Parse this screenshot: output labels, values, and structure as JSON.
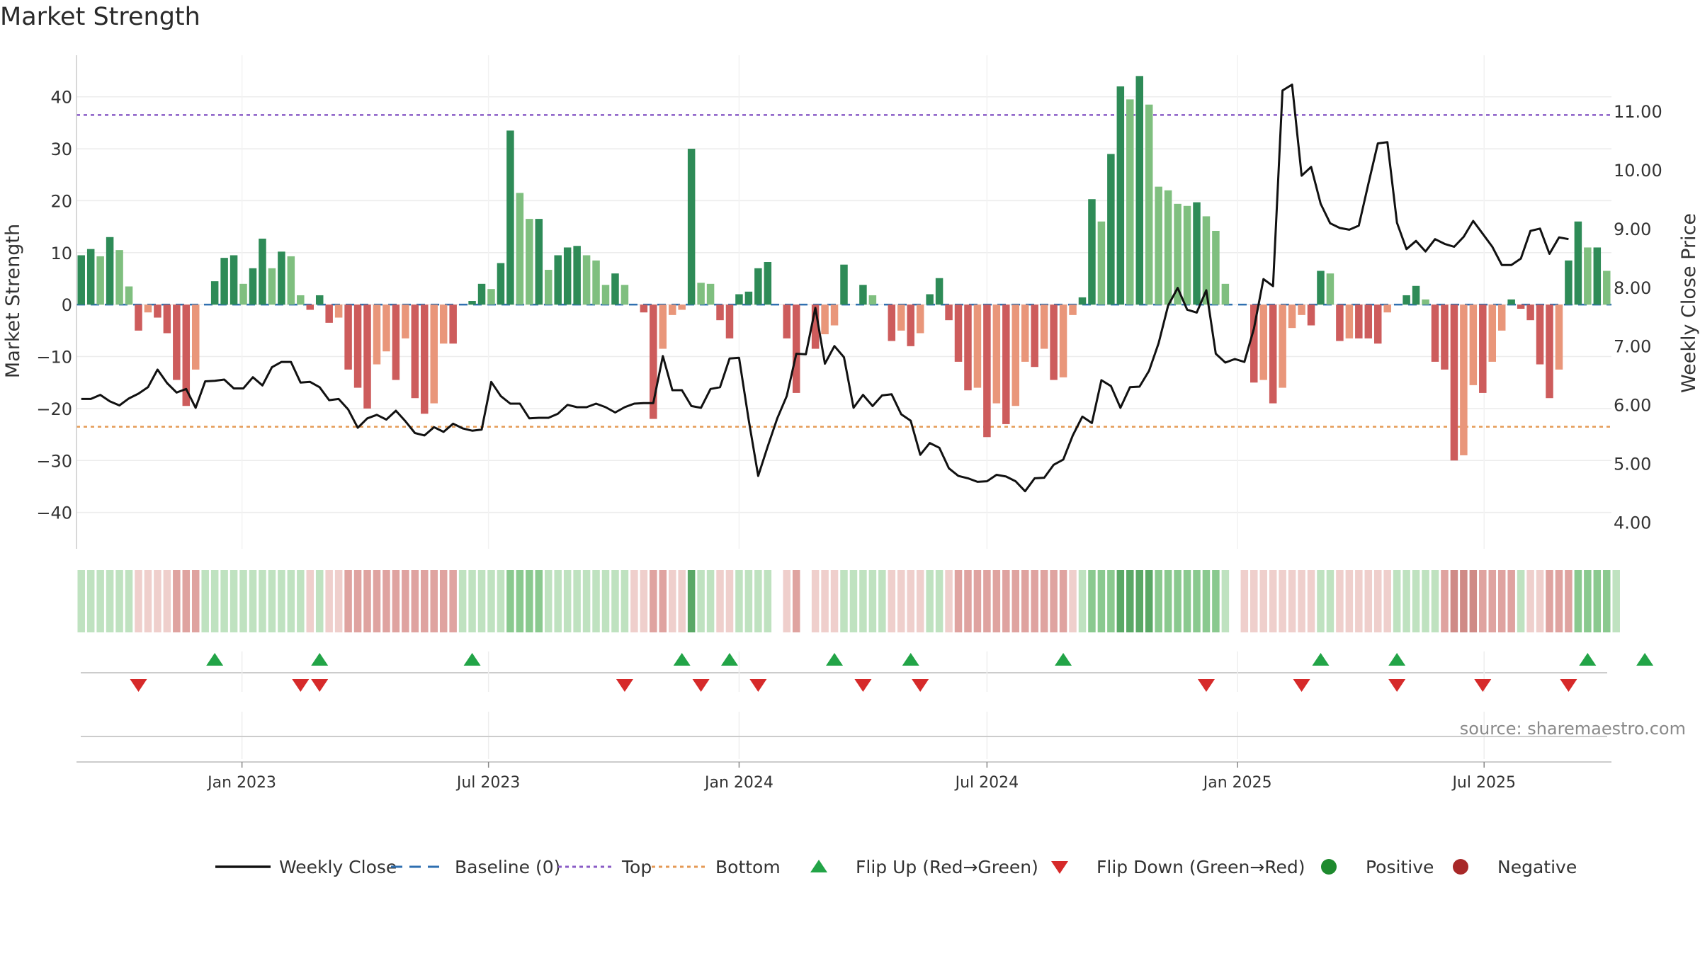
{
  "chart_data": {
    "type": "bar",
    "title": "Market Strength",
    "ylabel": "Market Strength",
    "y2label": "Weekly Close Price",
    "ylim": [
      -47,
      48
    ],
    "y2lim": [
      3.55,
      11.95
    ],
    "yticks": [
      40,
      30,
      20,
      10,
      0,
      -10,
      -20,
      -30,
      -40
    ],
    "ytick_labels": [
      "40",
      "30",
      "20",
      "10",
      "0",
      "−10",
      "−20",
      "−30",
      "−40"
    ],
    "y2ticks": [
      11,
      10,
      9,
      8,
      7,
      6,
      5,
      4
    ],
    "y2tick_labels": [
      "11.00",
      "10.00",
      "9.00",
      "8.00",
      "7.00",
      "6.00",
      "5.00",
      "4.00"
    ],
    "x_start": "2022-09-05",
    "x_step_days": 7,
    "x_tick_dates": [
      "2023-01-01",
      "2023-07-01",
      "2024-01-01",
      "2024-07-01",
      "2025-01-01",
      "2025-07-01"
    ],
    "x_tick_labels": [
      "Jan 2023",
      "Jul 2023",
      "Jan 2024",
      "Jul 2024",
      "Jan 2025",
      "Jul 2025"
    ],
    "top_line": 36.5,
    "bottom_line": -23.5,
    "grid": true,
    "series": [
      {
        "name": "Market Strength",
        "values": [
          9.5,
          10.7,
          9.3,
          13,
          10.5,
          3.5,
          -5,
          -1.5,
          -2.5,
          -5.5,
          -14.5,
          -19.5,
          -12.5,
          0,
          4.5,
          9,
          9.5,
          4,
          7,
          12.7,
          7,
          10.2,
          9.3,
          1.8,
          -1,
          1.8,
          -3.5,
          -2.5,
          -12.5,
          -16,
          -20,
          -11.5,
          -9,
          -14.5,
          -6.5,
          -18,
          -21,
          -19,
          -7.5,
          -7.5,
          0,
          0.7,
          4,
          3,
          8,
          33.5,
          21.5,
          16.5,
          16.5,
          6.7,
          9.5,
          11,
          11.3,
          9.5,
          8.5,
          3.8,
          6,
          3.8,
          0,
          -1.5,
          -22,
          -8.5,
          -2,
          -1,
          30,
          4.2,
          4,
          -3,
          -6.5,
          2,
          2.5,
          7,
          8.2,
          0,
          -6.5,
          -17,
          0,
          -8.5,
          -5.7,
          -4,
          7.7,
          0,
          3.8,
          1.8,
          0,
          -7,
          -5,
          -8,
          -5.5,
          2,
          5.1,
          -3,
          -11,
          -16.5,
          -16,
          -25.5,
          -19,
          -23,
          -19.5,
          -11,
          -12,
          -8.5,
          -14.5,
          -14,
          -2,
          1.4,
          20.3,
          16,
          29,
          42,
          39.5,
          44,
          38.5,
          22.7,
          22,
          19.4,
          19,
          19.7,
          17,
          14.2,
          4,
          0,
          0,
          -15,
          -14.5,
          -19,
          -16,
          -4.5,
          -2,
          -4,
          6.5,
          6,
          -7,
          -6.5,
          -6.5,
          -6.5,
          -7.5,
          -1.5,
          0,
          1.8,
          3.6,
          1,
          -11,
          -12.5,
          -30,
          -29,
          -15.5,
          -17,
          -11,
          -5,
          1,
          -0.8,
          -3,
          -11.5,
          -18,
          -12.5,
          8.5,
          16,
          11,
          11,
          6.5
        ],
        "flips_up": [
          14,
          25,
          41,
          63,
          68,
          79,
          87,
          103,
          130,
          138,
          158,
          164
        ],
        "flips_down": [
          6,
          23,
          25,
          57,
          65,
          71,
          82,
          88,
          118,
          128,
          138,
          147,
          156
        ]
      },
      {
        "name": "Weekly Close",
        "values": [
          6.1,
          6.1,
          6.17,
          6.06,
          5.99,
          6.11,
          6.19,
          6.3,
          6.6,
          6.37,
          6.21,
          6.27,
          5.95,
          6.4,
          6.41,
          6.43,
          6.28,
          6.28,
          6.47,
          6.33,
          6.64,
          6.73,
          6.73,
          6.38,
          6.39,
          6.3,
          6.08,
          6.1,
          5.92,
          5.61,
          5.77,
          5.83,
          5.75,
          5.9,
          5.72,
          5.52,
          5.48,
          5.62,
          5.54,
          5.68,
          5.6,
          5.56,
          5.58,
          6.39,
          6.15,
          6.02,
          6.02,
          5.77,
          5.78,
          5.78,
          5.85,
          6.0,
          5.96,
          5.96,
          6.02,
          5.96,
          5.87,
          5.96,
          6.02,
          6.03,
          6.03,
          6.83,
          6.25,
          6.25,
          5.98,
          5.95,
          6.27,
          6.3,
          6.79,
          6.8,
          5.75,
          4.79,
          5.29,
          5.77,
          6.15,
          6.87,
          6.86,
          7.65,
          6.7,
          7.0,
          6.81,
          5.95,
          6.17,
          5.98,
          6.16,
          6.18,
          5.84,
          5.73,
          5.15,
          5.35,
          5.27,
          4.92,
          4.79,
          4.75,
          4.69,
          4.7,
          4.81,
          4.78,
          4.7,
          4.53,
          4.75,
          4.76,
          4.98,
          5.07,
          5.48,
          5.8,
          5.69,
          6.42,
          6.32,
          5.95,
          6.3,
          6.31,
          6.58,
          7.05,
          7.69,
          7.99,
          7.62,
          7.57,
          7.95,
          6.87,
          6.72,
          6.78,
          6.73,
          7.3,
          8.14,
          8.02,
          11.35,
          11.45,
          9.9,
          10.05,
          9.42,
          9.09,
          9.01,
          8.98,
          9.05,
          9.76,
          10.45,
          10.47,
          9.1,
          8.65,
          8.79,
          8.61,
          8.82,
          8.74,
          8.69,
          8.86,
          9.13,
          8.91,
          8.69,
          8.38,
          8.38,
          8.49,
          8.96,
          9.0,
          8.57,
          8.85,
          8.82
        ],
        "yaxis": "right"
      }
    ],
    "strip_levels": [
      1,
      1,
      1,
      1,
      1,
      1,
      -1,
      -1,
      -1,
      -1,
      -2,
      -2,
      -2,
      1,
      1,
      1,
      1,
      1,
      1,
      1,
      1,
      1,
      1,
      1,
      -1,
      1,
      -1,
      -1,
      -2,
      -2,
      -2,
      -2,
      -2,
      -2,
      -2,
      -2,
      -2,
      -2,
      -2,
      -2,
      1,
      1,
      1,
      1,
      1,
      2,
      2,
      2,
      2,
      1,
      1,
      1,
      1,
      1,
      1,
      1,
      1,
      1,
      -1,
      -1,
      -2,
      -2,
      -1,
      -1,
      3,
      1,
      1,
      -1,
      -1,
      1,
      1,
      1,
      1,
      0,
      -1,
      -2,
      0,
      -1,
      -1,
      -1,
      1,
      1,
      1,
      1,
      1,
      -1,
      -1,
      -1,
      -1,
      1,
      1,
      -1,
      -2,
      -2,
      -2,
      -2,
      -2,
      -2,
      -2,
      -2,
      -2,
      -2,
      -2,
      -2,
      -1,
      1,
      2,
      2,
      2,
      3,
      3,
      3,
      3,
      2,
      2,
      2,
      2,
      2,
      2,
      2,
      1,
      0,
      -1,
      -1,
      -1,
      -1,
      -1,
      -1,
      -1,
      -1,
      1,
      1,
      -1,
      -1,
      -1,
      -1,
      -1,
      -1,
      1,
      1,
      1,
      1,
      1,
      -2,
      -3,
      -3,
      -3,
      -2,
      -2,
      -2,
      -2,
      1,
      -1,
      -1,
      -2,
      -2,
      -2,
      2,
      2,
      2,
      2,
      1
    ]
  },
  "legend": {
    "items": [
      {
        "label": "Weekly Close",
        "kind": "line",
        "color": "#111111"
      },
      {
        "label": "Baseline (0)",
        "kind": "dash",
        "color": "#2f6fb0"
      },
      {
        "label": "Top",
        "kind": "dot",
        "color": "#8a5cc6"
      },
      {
        "label": "Bottom",
        "kind": "dot",
        "color": "#e59a55"
      },
      {
        "label": "Flip Up (Red→Green)",
        "kind": "tri-up",
        "color": "#22a447"
      },
      {
        "label": "Flip Down (Green→Red)",
        "kind": "tri-down",
        "color": "#d62a2a"
      },
      {
        "label": "Positive",
        "kind": "circle",
        "color": "#1e8a2e"
      },
      {
        "label": "Negative",
        "kind": "circle",
        "color": "#a82828"
      }
    ]
  },
  "source": "source: sharemaestro.com",
  "colors": {
    "pos_strong": "#2e8b57",
    "pos_light": "#7fbf7f",
    "neg_strong": "#cd5c5c",
    "neg_light": "#e9967a",
    "close_line": "#111111",
    "baseline": "#2f6fb0",
    "top": "#8a5cc6",
    "bottom": "#e59a55"
  }
}
